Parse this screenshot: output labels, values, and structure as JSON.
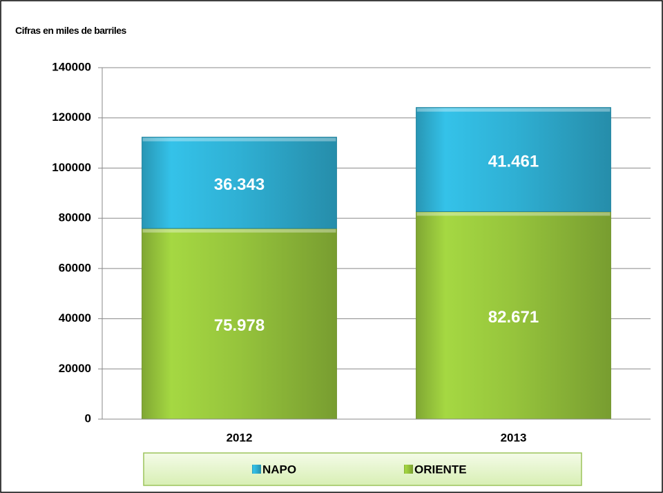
{
  "chart_data": {
    "type": "bar",
    "stacked": true,
    "y_axis_label": "Cifras en miles de barriles",
    "categories": [
      "2012",
      "2013"
    ],
    "series": [
      {
        "name": "NAPO",
        "color": "#2fb0d4",
        "values": [
          36343,
          41461
        ],
        "value_labels": [
          "36.343",
          "41.461"
        ]
      },
      {
        "name": "ORIENTE",
        "color": "#96c43c",
        "values": [
          75978,
          82671
        ],
        "value_labels": [
          "75.978",
          "82.671"
        ]
      }
    ],
    "ylim": [
      0,
      140000
    ],
    "yticks": [
      0,
      20000,
      40000,
      60000,
      80000,
      100000,
      120000,
      140000
    ],
    "grid": true
  }
}
